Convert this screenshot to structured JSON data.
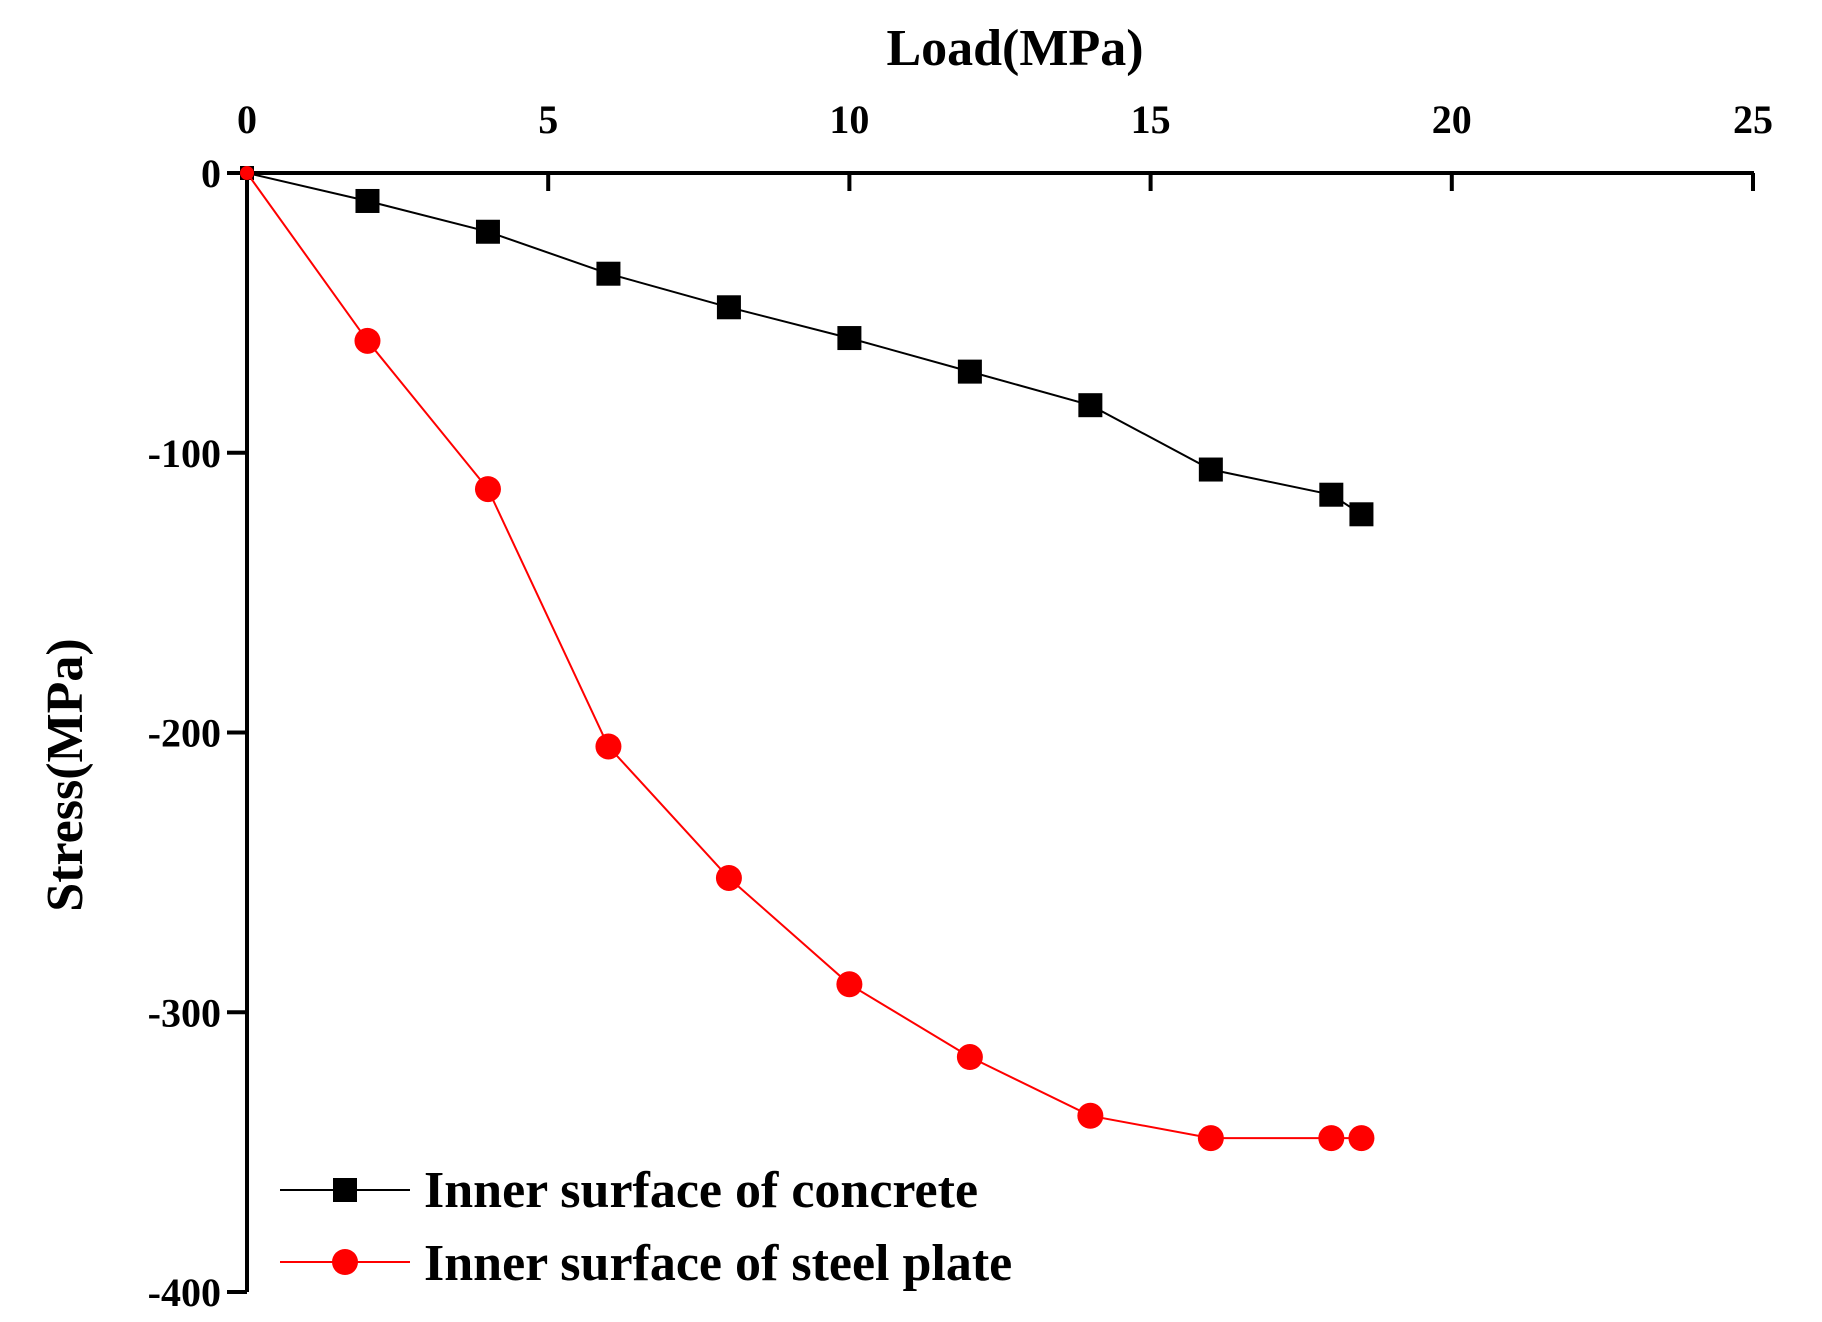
{
  "chart_data": {
    "type": "line",
    "title": "",
    "xlabel": "Load(MPa)",
    "ylabel": "Stress(MPa)",
    "xlim": [
      0,
      25
    ],
    "ylim": [
      -400,
      0
    ],
    "x_ticks": [
      0,
      5,
      10,
      15,
      20,
      25
    ],
    "y_ticks": [
      0,
      -100,
      -200,
      -300,
      -400
    ],
    "x_tick_labels": [
      "0",
      "5",
      "10",
      "15",
      "20",
      "25"
    ],
    "y_tick_labels": [
      "0",
      "-100",
      "-200",
      "-300",
      "-400"
    ],
    "x_axis_position": "top",
    "grid": false,
    "legend_position": "bottom-left",
    "series": [
      {
        "name": "Inner surface of concrete",
        "color": "#000000",
        "marker": "square",
        "x": [
          0,
          2,
          4,
          6,
          8,
          10,
          12,
          14,
          16,
          18,
          18.5
        ],
        "y": [
          0,
          -10,
          -21,
          -36,
          -48,
          -59,
          -71,
          -83,
          -106,
          -115,
          -122
        ]
      },
      {
        "name": "Inner surface of steel plate",
        "color": "#ff0000",
        "marker": "circle",
        "x": [
          0,
          2,
          4,
          6,
          8,
          10,
          12,
          14,
          16,
          18,
          18.5
        ],
        "y": [
          0,
          -60,
          -113,
          -205,
          -252,
          -290,
          -316,
          -337,
          -345,
          -345,
          -345
        ]
      }
    ]
  }
}
